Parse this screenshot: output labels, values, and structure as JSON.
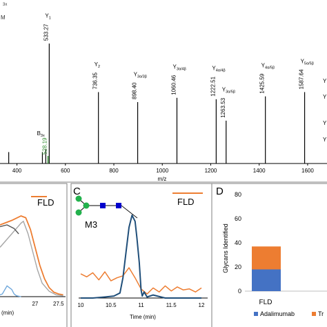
{
  "figure": {
    "panel_top_clipped_label": "x",
    "panel_c_label": "C",
    "panel_d_label": "D",
    "colors": {
      "ms_line": "#000000",
      "highlight": "#2e8b2e",
      "orange": "#ed7d31",
      "blue": "#1f4e79",
      "light_blue": "#6fa8dc",
      "gray": "#a6a6a6",
      "glycan_green": "#22b14c",
      "glycan_blue": "#0000cc"
    }
  },
  "chart_data": [
    {
      "type": "bar",
      "panel": "top",
      "xlabel": "m/z",
      "xlim": [
        330,
        1680
      ],
      "ylim": [
        0,
        1
      ],
      "x_ticks": [
        "400",
        "600",
        "800",
        "1000",
        "1200",
        "1400",
        "1600"
      ],
      "x_tick_values": [
        400,
        600,
        800,
        1000,
        1200,
        1400,
        1600
      ],
      "peaks_mz": [
        366,
        505,
        519,
        533.27,
        736.35,
        898.4,
        1060.46,
        1222.51,
        1263.53,
        1425.59,
        1587.64
      ],
      "peaks_rel": [
        0.08,
        0.08,
        0.1,
        0.84,
        0.5,
        0.43,
        0.46,
        0.45,
        0.3,
        0.47,
        0.5
      ],
      "annotations": [
        {
          "mz": 528.19,
          "value": "528.19",
          "ion": "B",
          "ion_sub": "3x",
          "highlight": true
        },
        {
          "mz": 533.27,
          "value": "533.27",
          "ion": "Y",
          "ion_sub": "1"
        },
        {
          "mz": 736.35,
          "value": "736.35",
          "ion": "Y",
          "ion_sub": "2"
        },
        {
          "mz": 898.4,
          "value": "898.40",
          "ion": "Y",
          "ion_sub": "3α/3β"
        },
        {
          "mz": 1060.46,
          "value": "1060.46",
          "ion": "Y",
          "ion_sub": "3α/4β"
        },
        {
          "mz": 1222.51,
          "value": "1222.51",
          "ion": "Y",
          "ion_sub": "4α/4β"
        },
        {
          "mz": 1263.53,
          "value": "1263.53",
          "ion": "Y",
          "ion_sub": "3α/5β"
        },
        {
          "mz": 1425.59,
          "value": "1425.59",
          "ion": "Y",
          "ion_sub": "4α/5β"
        },
        {
          "mz": 1587.64,
          "value": "1587.64",
          "ion": "Y",
          "ion_sub": "5α/5β"
        }
      ],
      "right_edge_labels": [
        "Y",
        "Y",
        "Y",
        "Y"
      ],
      "top_left_clipped_text": [
        "3x",
        "M"
      ]
    },
    {
      "type": "line",
      "panel": "B",
      "legend": [
        "FLD"
      ],
      "xlabel": "(min)",
      "x_ticks": [
        "27",
        "27.5"
      ],
      "x_tick_values": [
        27,
        27.5
      ],
      "xlim": [
        26.25,
        27.65
      ],
      "ylim": [
        0,
        1
      ],
      "series": [
        {
          "name": "FLD",
          "color": "orange",
          "x": [
            26.25,
            26.5,
            26.7,
            26.8,
            26.9,
            27.0,
            27.1,
            27.2,
            27.3,
            27.4,
            27.5,
            27.6
          ],
          "y": [
            0.8,
            0.85,
            0.9,
            0.88,
            0.75,
            0.55,
            0.35,
            0.2,
            0.1,
            0.05,
            0.03,
            0.02
          ]
        },
        {
          "name": "",
          "color": "gray",
          "x": [
            26.25,
            26.5,
            26.7,
            26.75,
            26.85,
            26.95,
            27.05,
            27.15,
            27.3,
            27.45,
            27.6
          ],
          "y": [
            0.55,
            0.7,
            0.82,
            0.84,
            0.7,
            0.5,
            0.3,
            0.15,
            0.06,
            0.02,
            0.01
          ]
        },
        {
          "name": "",
          "color": "dark",
          "x": [
            26.25,
            26.4,
            26.55,
            26.65
          ],
          "y": [
            0.78,
            0.8,
            0.76,
            0.7
          ]
        },
        {
          "name": "",
          "color": "light_blue",
          "x": [
            26.25,
            26.3,
            26.4,
            26.5,
            26.55,
            26.6,
            26.7
          ],
          "y": [
            0.02,
            0.03,
            0.12,
            0.08,
            0.03,
            0.01,
            0.0
          ]
        }
      ]
    },
    {
      "type": "line",
      "panel": "C",
      "legend": [
        "FLD"
      ],
      "glycan_label": "M3",
      "xlabel": "Time (min)",
      "x_ticks": [
        "10",
        "10.5",
        "11",
        "11.5",
        "12"
      ],
      "x_tick_values": [
        10,
        10.5,
        11,
        11.5,
        12
      ],
      "xlim": [
        10,
        12
      ],
      "ylim": [
        0,
        1
      ],
      "series": [
        {
          "name": "",
          "color": "blue",
          "x": [
            10,
            10.2,
            10.4,
            10.55,
            10.65,
            10.7,
            10.75,
            10.8,
            10.85,
            10.9,
            10.93,
            10.97,
            11.0,
            11.02,
            11.05,
            11.1,
            11.2,
            11.4,
            11.6,
            11.8,
            12
          ],
          "y": [
            0,
            0,
            0.01,
            0.02,
            0.05,
            0.2,
            0.45,
            0.7,
            0.82,
            0.76,
            0.6,
            0.35,
            0.08,
            0.02,
            0.06,
            0.01,
            0.03,
            0.0,
            0.0,
            0.0,
            0.0
          ]
        },
        {
          "name": "FLD",
          "color": "orange",
          "x": [
            10,
            10.1,
            10.2,
            10.3,
            10.4,
            10.5,
            10.6,
            10.7,
            10.8,
            10.9,
            11.0,
            11.1,
            11.2,
            11.3,
            11.4,
            11.5,
            11.6,
            11.7,
            11.8,
            11.9,
            12
          ],
          "y": [
            0.24,
            0.21,
            0.25,
            0.18,
            0.26,
            0.17,
            0.2,
            0.22,
            0.3,
            0.2,
            0.09,
            0.04,
            0.1,
            0.06,
            0.12,
            0.07,
            0.11,
            0.08,
            0.09,
            0.06,
            0.1
          ]
        }
      ]
    },
    {
      "type": "bar",
      "panel": "D",
      "stacked": true,
      "ylabel": "Glycans Identified",
      "ylim": [
        0,
        80
      ],
      "y_ticks": [
        "0",
        "20",
        "40",
        "60",
        "80"
      ],
      "y_tick_values": [
        0,
        20,
        40,
        60,
        80
      ],
      "categories": [
        "FLD"
      ],
      "series": [
        {
          "name": "Adalimumab",
          "color": "#4472c4",
          "values": [
            18
          ]
        },
        {
          "name": "Tr",
          "color": "#ed7d31",
          "values": [
            19
          ]
        }
      ],
      "legend": [
        "Adalimumab",
        "Tr"
      ],
      "grid": false
    }
  ]
}
